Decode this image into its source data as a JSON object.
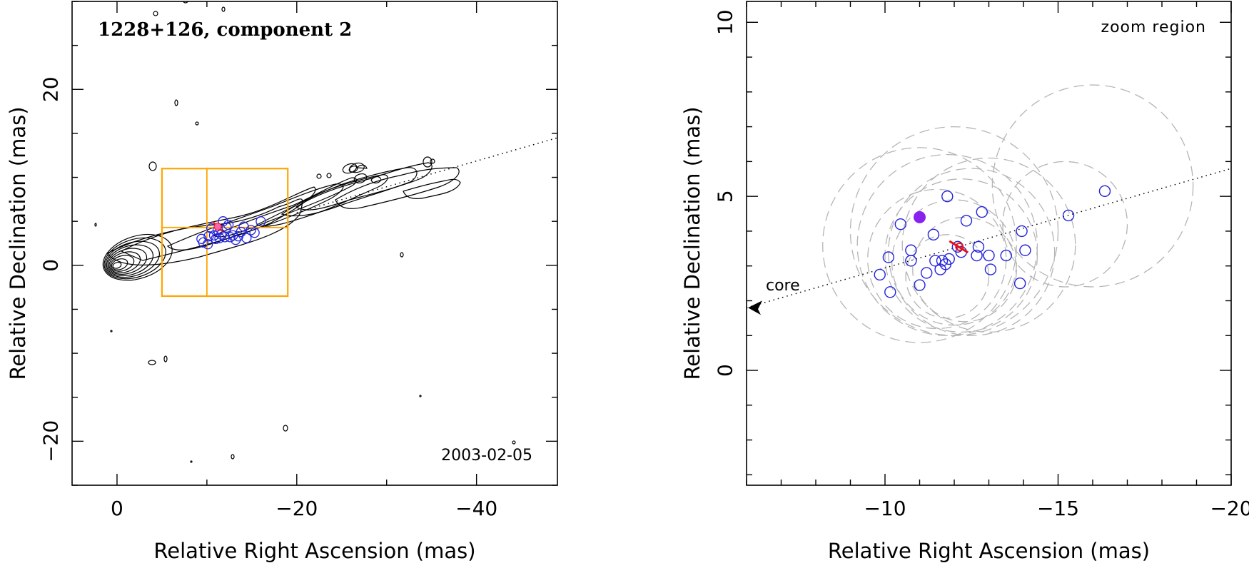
{
  "chart_data": [
    {
      "type": "contour-map",
      "title": "1228+126, component 2",
      "date_label": "2003-02-05",
      "xlabel": "Relative Right Ascension (mas)",
      "ylabel": "Relative Declination (mas)",
      "xlim": [
        5,
        -49
      ],
      "ylim": [
        -25,
        30
      ],
      "x_ticks": [
        0,
        -20,
        -40
      ],
      "x_tick_labels": [
        "0",
        "−20",
        "−40"
      ],
      "y_ticks": [
        -20,
        0,
        20
      ],
      "y_tick_labels": [
        "−20",
        "0",
        "20"
      ],
      "zoom_box": {
        "x": [
          -5,
          -19
        ],
        "y": [
          -3.5,
          11
        ]
      },
      "zoom_crosshair": {
        "x": -10,
        "y": 4.3
      },
      "jet_axis_line": [
        [
          -20,
          6
        ],
        [
          -49,
          14.5
        ]
      ],
      "components": [
        [
          -10.2,
          3.3
        ],
        [
          -10.5,
          4.2
        ],
        [
          -10.8,
          3.4
        ],
        [
          -11.0,
          3.0
        ],
        [
          -11.2,
          4.0
        ],
        [
          -11.4,
          3.1
        ],
        [
          -11.6,
          3.5
        ],
        [
          -11.8,
          5.0
        ],
        [
          -12.0,
          3.2
        ],
        [
          -12.2,
          4.3
        ],
        [
          -12.4,
          4.6
        ],
        [
          -12.6,
          3.2
        ],
        [
          -12.9,
          3.4
        ],
        [
          -13.2,
          2.9
        ],
        [
          -13.5,
          3.3
        ],
        [
          -13.8,
          3.8
        ],
        [
          -14.1,
          4.4
        ],
        [
          -14.4,
          3.1
        ],
        [
          -14.9,
          4.0
        ],
        [
          -15.3,
          3.7
        ],
        [
          -16.0,
          5.0
        ],
        [
          -9.6,
          2.6
        ],
        [
          -9.4,
          3.0
        ],
        [
          -10.1,
          2.4
        ]
      ],
      "red_marker": [
        -11.2,
        4.4
      ]
    },
    {
      "type": "scatter",
      "title": "zoom region",
      "core_label": "core",
      "xlabel": "Relative Right Ascension (mas)",
      "ylabel": "Relative Declination (mas)",
      "xlim": [
        -6,
        -20
      ],
      "ylim": [
        -3.3,
        10.6
      ],
      "x_ticks": [
        -10,
        -15,
        -20
      ],
      "x_tick_labels": [
        "−10",
        "−15",
        "−20"
      ],
      "y_ticks": [
        0,
        5,
        10
      ],
      "y_tick_labels": [
        "0",
        "5",
        "10"
      ],
      "jet_axis_line": [
        [
          -6,
          1.8
        ],
        [
          -20,
          5.8
        ]
      ],
      "points": [
        [
          -10.15,
          2.25
        ],
        [
          -10.45,
          4.2
        ],
        [
          -10.75,
          3.45
        ],
        [
          -10.75,
          3.15
        ],
        [
          -11.0,
          2.45
        ],
        [
          -11.2,
          2.8
        ],
        [
          -11.4,
          3.9
        ],
        [
          -11.45,
          3.15
        ],
        [
          -11.6,
          2.9
        ],
        [
          -11.65,
          3.15
        ],
        [
          -11.75,
          3.05
        ],
        [
          -11.8,
          5.0
        ],
        [
          -11.85,
          3.2
        ],
        [
          -12.1,
          3.55
        ],
        [
          -12.2,
          3.4
        ],
        [
          -12.35,
          4.3
        ],
        [
          -12.65,
          3.3
        ],
        [
          -12.7,
          3.55
        ],
        [
          -12.8,
          4.55
        ],
        [
          -13.0,
          3.3
        ],
        [
          -13.05,
          2.9
        ],
        [
          -13.5,
          3.3
        ],
        [
          -13.9,
          2.5
        ],
        [
          -13.95,
          4.0
        ],
        [
          -14.05,
          3.45
        ],
        [
          -15.3,
          4.45
        ],
        [
          -16.35,
          5.15
        ],
        [
          -9.85,
          2.75
        ],
        [
          -10.1,
          3.25
        ]
      ],
      "highlight_point": [
        -11.0,
        4.4
      ],
      "red_marker": [
        -12.15,
        3.55
      ],
      "uncertainty_circles": [
        {
          "cx": -12.0,
          "cy": 4.0,
          "r": 3.0
        },
        {
          "cx": -11.8,
          "cy": 3.6,
          "r": 2.6
        },
        {
          "cx": -12.2,
          "cy": 3.3,
          "r": 2.2
        },
        {
          "cx": -12.0,
          "cy": 3.1,
          "r": 1.8
        },
        {
          "cx": -12.5,
          "cy": 3.4,
          "r": 2.4
        },
        {
          "cx": -11.5,
          "cy": 3.2,
          "r": 2.0
        },
        {
          "cx": -11.0,
          "cy": 3.6,
          "r": 2.8
        },
        {
          "cx": -13.0,
          "cy": 3.6,
          "r": 2.5
        },
        {
          "cx": -12.3,
          "cy": 2.9,
          "r": 1.5
        },
        {
          "cx": -11.8,
          "cy": 2.7,
          "r": 1.2
        },
        {
          "cx": -16.0,
          "cy": 5.3,
          "r": 2.9
        },
        {
          "cx": -15.2,
          "cy": 4.2,
          "r": 1.8
        }
      ]
    }
  ]
}
